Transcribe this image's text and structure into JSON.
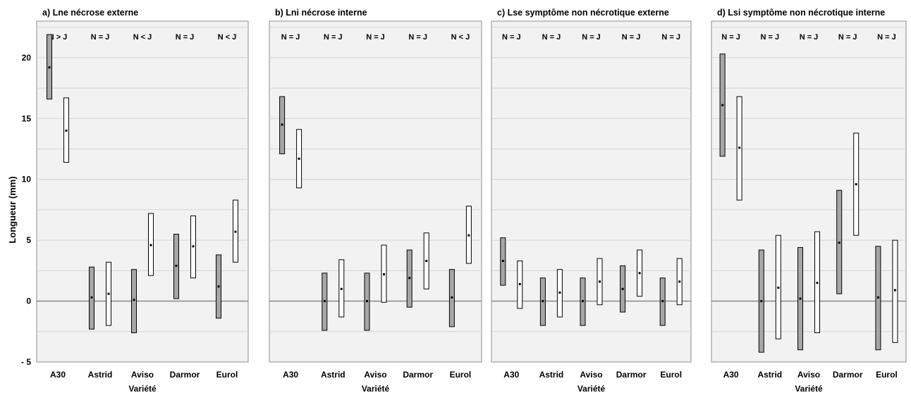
{
  "ylabel": "Longueur (mm)",
  "xlabel": "Variété",
  "yticks": [
    "20",
    "15",
    "10",
    "5",
    "0",
    "- 5"
  ],
  "chart_data": [
    {
      "type": "range",
      "title": "a) Lne nécrose externe",
      "xlabel": "Variété",
      "ylabel": "Longueur (mm)",
      "ylim": [
        -5,
        23
      ],
      "grid": true,
      "categories": [
        "A30",
        "Astrid",
        "Aviso",
        "Darmor",
        "Eurol"
      ],
      "comparisons": [
        "N > J",
        "N = J",
        "N < J",
        "N = J",
        "N < J"
      ],
      "series": [
        {
          "color": "#a6a6a6",
          "low": [
            16.6,
            -2.3,
            -2.6,
            0.2,
            -1.4
          ],
          "mean": [
            19.2,
            0.3,
            0.1,
            2.9,
            1.2
          ],
          "high": [
            21.9,
            2.8,
            2.6,
            5.5,
            3.8
          ]
        },
        {
          "color": "#ffffff",
          "low": [
            11.4,
            -2.0,
            2.1,
            1.9,
            3.2
          ],
          "mean": [
            14.0,
            0.6,
            4.6,
            4.5,
            5.7
          ],
          "high": [
            16.7,
            3.2,
            7.2,
            7.0,
            8.3
          ]
        }
      ]
    },
    {
      "type": "range",
      "title": "b) Lni nécrose interne",
      "xlabel": "Variété",
      "ylabel": "Longueur (mm)",
      "ylim": [
        -5,
        23
      ],
      "grid": true,
      "categories": [
        "A30",
        "Astrid",
        "Aviso",
        "Darmor",
        "Eurol"
      ],
      "comparisons": [
        "N = J",
        "N = J",
        "N = J",
        "N = J",
        "N < J"
      ],
      "series": [
        {
          "color": "#a6a6a6",
          "low": [
            12.1,
            -2.4,
            -2.4,
            -0.5,
            -2.1
          ],
          "mean": [
            14.5,
            0.0,
            0.0,
            1.9,
            0.3
          ],
          "high": [
            16.8,
            2.3,
            2.3,
            4.2,
            2.6
          ]
        },
        {
          "color": "#ffffff",
          "low": [
            9.3,
            -1.3,
            -0.1,
            1.0,
            3.1
          ],
          "mean": [
            11.7,
            1.0,
            2.2,
            3.3,
            5.4
          ],
          "high": [
            14.1,
            3.4,
            4.6,
            5.6,
            7.8
          ]
        }
      ]
    },
    {
      "type": "range",
      "title": "c) Lse symptôme non nécrotique externe",
      "xlabel": "Variété",
      "ylabel": "Longueur (mm)",
      "ylim": [
        -5,
        23
      ],
      "grid": true,
      "categories": [
        "A30",
        "Astrid",
        "Aviso",
        "Darmor",
        "Eurol"
      ],
      "comparisons": [
        "N = J",
        "N = J",
        "N = J",
        "N = J",
        "N = J"
      ],
      "series": [
        {
          "color": "#a6a6a6",
          "low": [
            1.3,
            -2.0,
            -2.0,
            -0.9,
            -2.0
          ],
          "mean": [
            3.3,
            0.0,
            0.0,
            1.0,
            0.0
          ],
          "high": [
            5.2,
            1.9,
            1.9,
            2.9,
            1.9
          ]
        },
        {
          "color": "#ffffff",
          "low": [
            -0.6,
            -1.3,
            -0.3,
            0.4,
            -0.3
          ],
          "mean": [
            1.4,
            0.7,
            1.6,
            2.3,
            1.6
          ],
          "high": [
            3.3,
            2.6,
            3.5,
            4.2,
            3.5
          ]
        }
      ]
    },
    {
      "type": "range",
      "title": "d) Lsi symptôme non nécrotique interne",
      "xlabel": "Variété",
      "ylabel": "Longueur (mm)",
      "ylim": [
        -5,
        23
      ],
      "grid": true,
      "categories": [
        "A30",
        "Astrid",
        "Aviso",
        "Darmor",
        "Eurol"
      ],
      "comparisons": [
        "N = J",
        "N = J",
        "N = J",
        "N = J",
        "N = J"
      ],
      "series": [
        {
          "color": "#a6a6a6",
          "low": [
            11.9,
            -4.2,
            -4.0,
            0.6,
            -4.0
          ],
          "mean": [
            16.1,
            0.0,
            0.2,
            4.8,
            0.3
          ],
          "high": [
            20.3,
            4.2,
            4.4,
            9.1,
            4.5
          ]
        },
        {
          "color": "#ffffff",
          "low": [
            8.3,
            -3.1,
            -2.6,
            5.4,
            -3.4
          ],
          "mean": [
            12.6,
            1.1,
            1.5,
            9.6,
            0.9
          ],
          "high": [
            16.8,
            5.4,
            5.7,
            13.8,
            5.0
          ]
        }
      ]
    }
  ]
}
